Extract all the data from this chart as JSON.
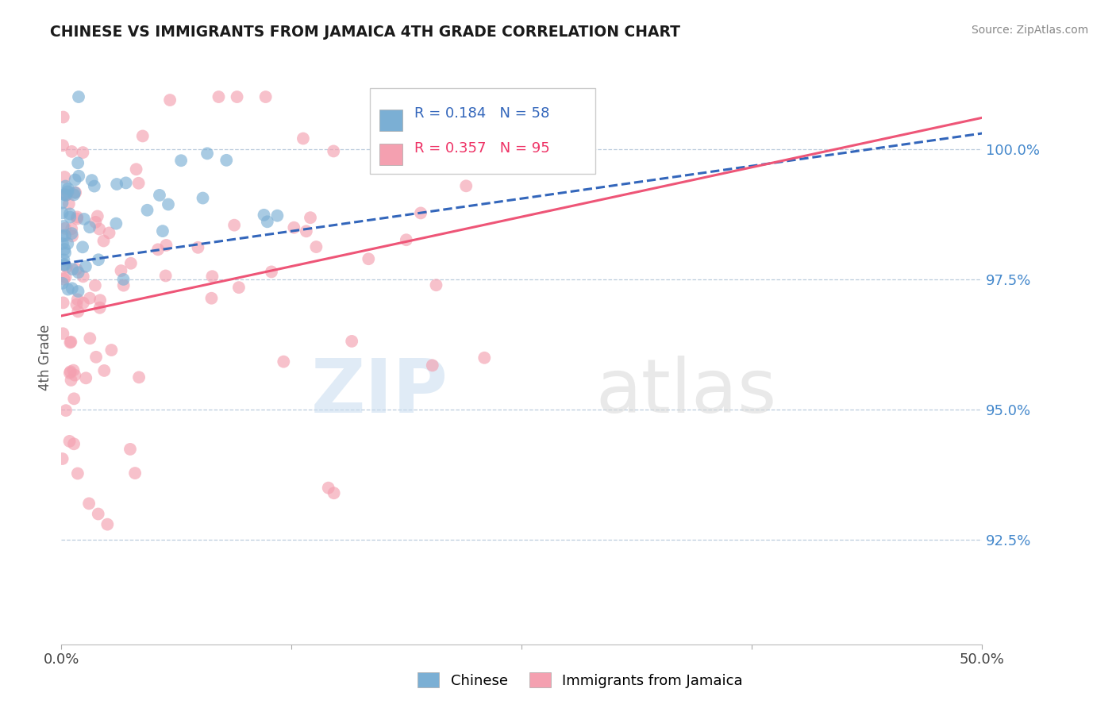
{
  "title": "CHINESE VS IMMIGRANTS FROM JAMAICA 4TH GRADE CORRELATION CHART",
  "source": "Source: ZipAtlas.com",
  "ylabel": "4th Grade",
  "xlim": [
    0.0,
    50.0
  ],
  "ylim": [
    90.5,
    101.5
  ],
  "yticks": [
    92.5,
    95.0,
    97.5,
    100.0
  ],
  "ytick_labels": [
    "92.5%",
    "95.0%",
    "97.5%",
    "100.0%"
  ],
  "legend1_label": "Chinese",
  "legend2_label": "Immigrants from Jamaica",
  "blue_R": 0.184,
  "blue_N": 58,
  "pink_R": 0.357,
  "pink_N": 95,
  "blue_color": "#7BAFD4",
  "pink_color": "#F4A0B0",
  "blue_line_color": "#3366BB",
  "pink_line_color": "#EE5577",
  "watermark_zip": "ZIP",
  "watermark_atlas": "atlas",
  "background_color": "#FFFFFF",
  "blue_line_x0": 0.0,
  "blue_line_y0": 97.8,
  "blue_line_x1": 50.0,
  "blue_line_y1": 100.3,
  "pink_line_x0": 0.0,
  "pink_line_y0": 96.8,
  "pink_line_x1": 50.0,
  "pink_line_y1": 100.6
}
